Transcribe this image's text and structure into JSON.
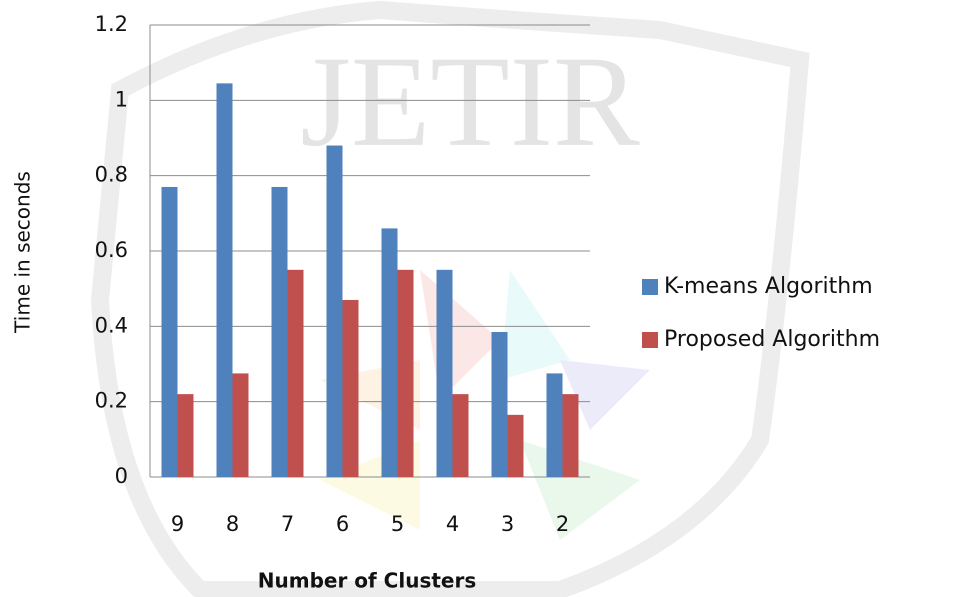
{
  "chart_data": {
    "type": "bar",
    "watermark": "JETIR",
    "x_label": "Number of Clusters",
    "y_label": "Time in seconds",
    "categories": [
      "9",
      "8",
      "7",
      "6",
      "5",
      "4",
      "3",
      "2"
    ],
    "series": [
      {
        "name": "K-means Algorithm",
        "color": "#4f81bd",
        "values": [
          0.77,
          1.045,
          0.77,
          0.88,
          0.66,
          0.55,
          0.385,
          0.275
        ]
      },
      {
        "name": "Proposed Algorithm",
        "color": "#c0504d",
        "values": [
          0.22,
          0.275,
          0.55,
          0.47,
          0.55,
          0.22,
          0.165,
          0.22
        ]
      }
    ],
    "ylim": [
      0,
      1.2
    ],
    "yticks": [
      0,
      0.2,
      0.4,
      0.6,
      0.8,
      1,
      1.2
    ],
    "grid": true,
    "legend": "right"
  }
}
